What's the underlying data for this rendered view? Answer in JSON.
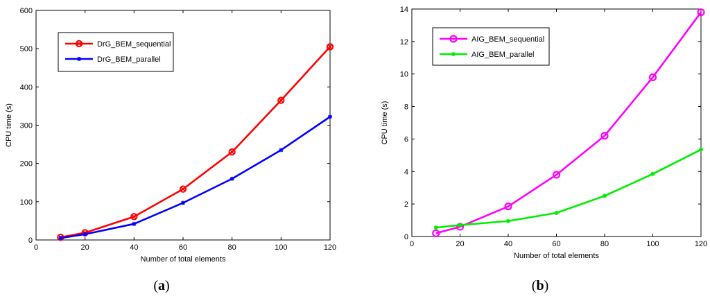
{
  "chart_data": [
    {
      "type": "line",
      "panel_label": "a",
      "xlabel": "Number of total elements",
      "ylabel": "CPU time (s)",
      "xlim": [
        0,
        120
      ],
      "ylim": [
        0,
        600
      ],
      "xticks": [
        "0",
        "20",
        "40",
        "60",
        "80",
        "100",
        "120"
      ],
      "yticks": [
        "0",
        "100",
        "200",
        "300",
        "400",
        "500",
        "600"
      ],
      "grid": false,
      "legend_position": "top-left",
      "x": [
        10,
        20,
        40,
        60,
        80,
        100,
        120
      ],
      "series": [
        {
          "name": "DrG_BEM_sequential",
          "color": "#ff0000",
          "marker": "circle-x",
          "values": [
            7,
            19,
            61,
            133,
            230,
            365,
            505
          ]
        },
        {
          "name": "DrG_BEM_parallel",
          "color": "#0000ff",
          "marker": "asterisk",
          "values": [
            5,
            15,
            42,
            97,
            160,
            235,
            322
          ]
        }
      ]
    },
    {
      "type": "line",
      "panel_label": "b",
      "xlabel": "Number of total elements",
      "ylabel": "CPU time (s)",
      "xlim": [
        0,
        120
      ],
      "ylim": [
        0,
        14
      ],
      "xticks": [
        "0",
        "20",
        "40",
        "60",
        "80",
        "100",
        "120"
      ],
      "yticks": [
        "0",
        "2",
        "4",
        "6",
        "8",
        "10",
        "12",
        "14"
      ],
      "grid": false,
      "legend_position": "top-left",
      "x": [
        10,
        20,
        40,
        60,
        80,
        100,
        120
      ],
      "series": [
        {
          "name": "AIG_BEM_sequential",
          "color": "#ff00ff",
          "marker": "circle",
          "values": [
            0.2,
            0.6,
            1.85,
            3.8,
            6.2,
            9.8,
            13.8
          ]
        },
        {
          "name": "AIG_BEM_parallel",
          "color": "#00ee00",
          "marker": "asterisk",
          "values": [
            0.55,
            0.7,
            0.95,
            1.45,
            2.5,
            3.85,
            5.35
          ]
        }
      ]
    }
  ]
}
